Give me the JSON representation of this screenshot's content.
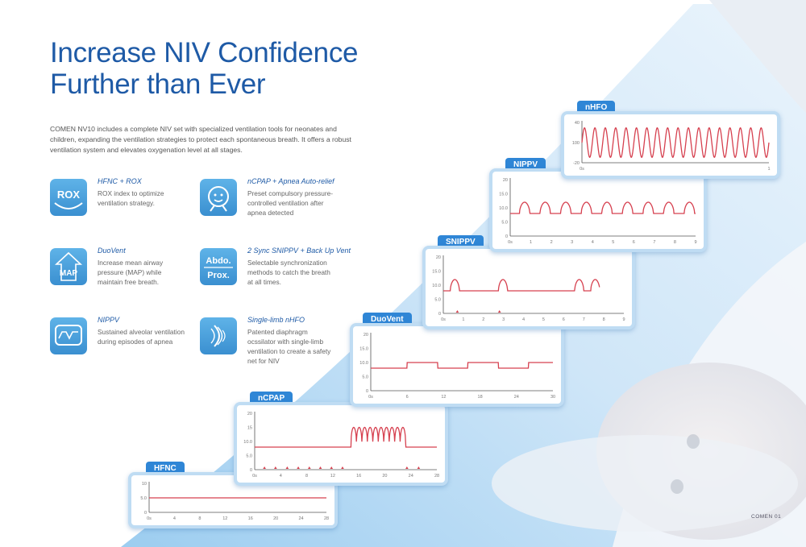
{
  "page": {
    "title_line1": "Increase NIV Confidence",
    "title_line2": "Further than Ever",
    "intro": "COMEN NV10 includes a complete NIV set with specialized ventilation tools for neonates and children, expanding the ventilation strategies to protect each spontaneous breath. It offers a robust ventilation system and elevates oxygenation level at all stages.",
    "brand": "COMEN 01"
  },
  "features": [
    {
      "id": "rox",
      "name": "HFNC + ROX",
      "desc": "ROX index to optimize ventilation strategy.",
      "icon": "rox-icon",
      "icon_text": "ROX"
    },
    {
      "id": "apnea",
      "name": "nCPAP + Apnea Auto-relief",
      "desc": "Preset compulsory pressure-controlled ventilation after apnea detected",
      "icon": "baby-face-icon"
    },
    {
      "id": "duovent",
      "name": "DuoVent",
      "desc": "Increase mean airway pressure (MAP) while maintain free breath.",
      "icon": "map-arrow-icon",
      "icon_text": "MAP"
    },
    {
      "id": "snippv",
      "name": "2 Sync SNIPPV + Back Up Vent",
      "desc": "Selectable synchronization methods to catch the breath at all times.",
      "icon": "abdo-prox-icon",
      "icon_text": "Abdo.",
      "icon_text2": "Prox."
    },
    {
      "id": "nippv",
      "name": "NIPPV",
      "desc": "Sustained alveolar ventilation during episodes of apnea",
      "icon": "wave-screen-icon"
    },
    {
      "id": "nhfo",
      "name": "Single-limb nHFO",
      "desc": "Patented diaphragm ocssilator with single-limb ventilation to create a safety net for NIV",
      "icon": "oscillator-icon"
    }
  ],
  "colors": {
    "accent": "#1e5aa6",
    "tab": "#2f86d6",
    "wave": "#d6404f",
    "card_border": "#bfdcf3"
  },
  "chart_data": [
    {
      "type": "line",
      "name": "HFNC",
      "y_ticks": [
        "10",
        "5.0",
        "0"
      ],
      "x_ticks": [
        "0s",
        "4",
        "8",
        "12",
        "16",
        "20",
        "24",
        "28"
      ],
      "y_range": [
        0,
        10
      ],
      "x_range": [
        0,
        28
      ],
      "pattern": "flat",
      "base": 5
    },
    {
      "type": "line",
      "name": "nCPAP",
      "y_ticks": [
        "20",
        "15",
        "10.0",
        "5.0",
        "0"
      ],
      "x_ticks": [
        "0s",
        "4",
        "8",
        "12",
        "16",
        "20",
        "24",
        "28"
      ],
      "y_range": [
        0,
        20
      ],
      "x_range": [
        0,
        28
      ],
      "pattern": "burst",
      "base": 8,
      "peak": 15,
      "burst_start": 14.8,
      "burst_end": 23.2,
      "burst_cycles": 10,
      "triggers": [
        1.5,
        3.2,
        5,
        6.7,
        8.4,
        10.1,
        11.8,
        13.5,
        23.4,
        25.2
      ]
    },
    {
      "type": "line",
      "name": "DuoVent",
      "y_ticks": [
        "20",
        "15.0",
        "10.0",
        "5.0",
        "0"
      ],
      "x_ticks": [
        "0s",
        "6",
        "12",
        "18",
        "24",
        "30"
      ],
      "y_range": [
        0,
        20
      ],
      "x_range": [
        0,
        30
      ],
      "pattern": "square",
      "base": 8,
      "high": 10,
      "high_segments": [
        [
          6,
          11
        ],
        [
          16,
          21
        ],
        [
          26,
          30
        ]
      ]
    },
    {
      "type": "line",
      "name": "SNIPPV",
      "y_ticks": [
        "20",
        "15.0",
        "10.0",
        "5.0",
        "0"
      ],
      "x_ticks": [
        "0s",
        "1",
        "2",
        "3",
        "4",
        "5",
        "6",
        "7",
        "8",
        "9"
      ],
      "y_range": [
        0,
        20
      ],
      "x_range": [
        0,
        9
      ],
      "pattern": "pulses",
      "base": 8,
      "peak": 12,
      "pulses": [
        0.35,
        2.75,
        6.55,
        7.35,
        8.05
      ],
      "pulse_width": 0.45,
      "triggers": [
        0.7,
        2.8
      ]
    },
    {
      "type": "line",
      "name": "NIPPV",
      "y_ticks": [
        "20",
        "15.0",
        "10.0",
        "5.0",
        "0"
      ],
      "x_ticks": [
        "0s",
        "1",
        "2",
        "3",
        "4",
        "5",
        "6",
        "7",
        "8",
        "9"
      ],
      "y_range": [
        0,
        20
      ],
      "x_range": [
        0,
        9
      ],
      "pattern": "periodic",
      "base": 8,
      "peak": 12,
      "period": 1.0,
      "start": 0.45
    },
    {
      "type": "line",
      "name": "nHFO",
      "y_ticks": [
        "40",
        "100",
        "-20"
      ],
      "x_ticks": [
        "0s",
        "1"
      ],
      "y_range": [
        -20,
        40
      ],
      "x_range": [
        0,
        1
      ],
      "pattern": "sine",
      "center": 10,
      "amp": 22,
      "cycles": 18
    }
  ]
}
